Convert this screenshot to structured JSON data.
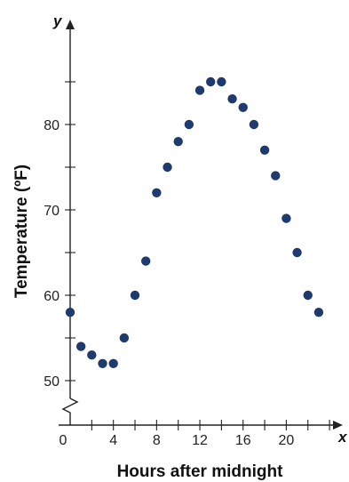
{
  "chart_data": {
    "type": "scatter",
    "title": "",
    "xlabel": "Hours after midnight",
    "ylabel": "Temperature (ºF)",
    "x_axis_letter": "x",
    "y_axis_letter": "y",
    "xlim": [
      0,
      24
    ],
    "ylim": [
      50,
      85
    ],
    "y_axis_break": true,
    "grid": false,
    "x_ticks": [
      4,
      8,
      12,
      16,
      20
    ],
    "x_tick_labels": [
      "4",
      "8",
      "12",
      "16",
      "20"
    ],
    "x_zero_label": "0",
    "y_ticks": [
      50,
      60,
      70,
      80
    ],
    "y_tick_labels": [
      "50",
      "60",
      "70",
      "80"
    ],
    "point_color": "#1f3a6e",
    "points": [
      {
        "x": 0,
        "y": 58
      },
      {
        "x": 1,
        "y": 54
      },
      {
        "x": 2,
        "y": 53
      },
      {
        "x": 3,
        "y": 52
      },
      {
        "x": 4,
        "y": 52
      },
      {
        "x": 5,
        "y": 55
      },
      {
        "x": 6,
        "y": 60
      },
      {
        "x": 7,
        "y": 64
      },
      {
        "x": 8,
        "y": 72
      },
      {
        "x": 9,
        "y": 75
      },
      {
        "x": 10,
        "y": 78
      },
      {
        "x": 11,
        "y": 80
      },
      {
        "x": 12,
        "y": 84
      },
      {
        "x": 13,
        "y": 85
      },
      {
        "x": 14,
        "y": 85
      },
      {
        "x": 15,
        "y": 83
      },
      {
        "x": 16,
        "y": 82
      },
      {
        "x": 17,
        "y": 80
      },
      {
        "x": 18,
        "y": 77
      },
      {
        "x": 19,
        "y": 74
      },
      {
        "x": 20,
        "y": 69
      },
      {
        "x": 21,
        "y": 65
      },
      {
        "x": 22,
        "y": 60
      },
      {
        "x": 23,
        "y": 58
      }
    ]
  }
}
